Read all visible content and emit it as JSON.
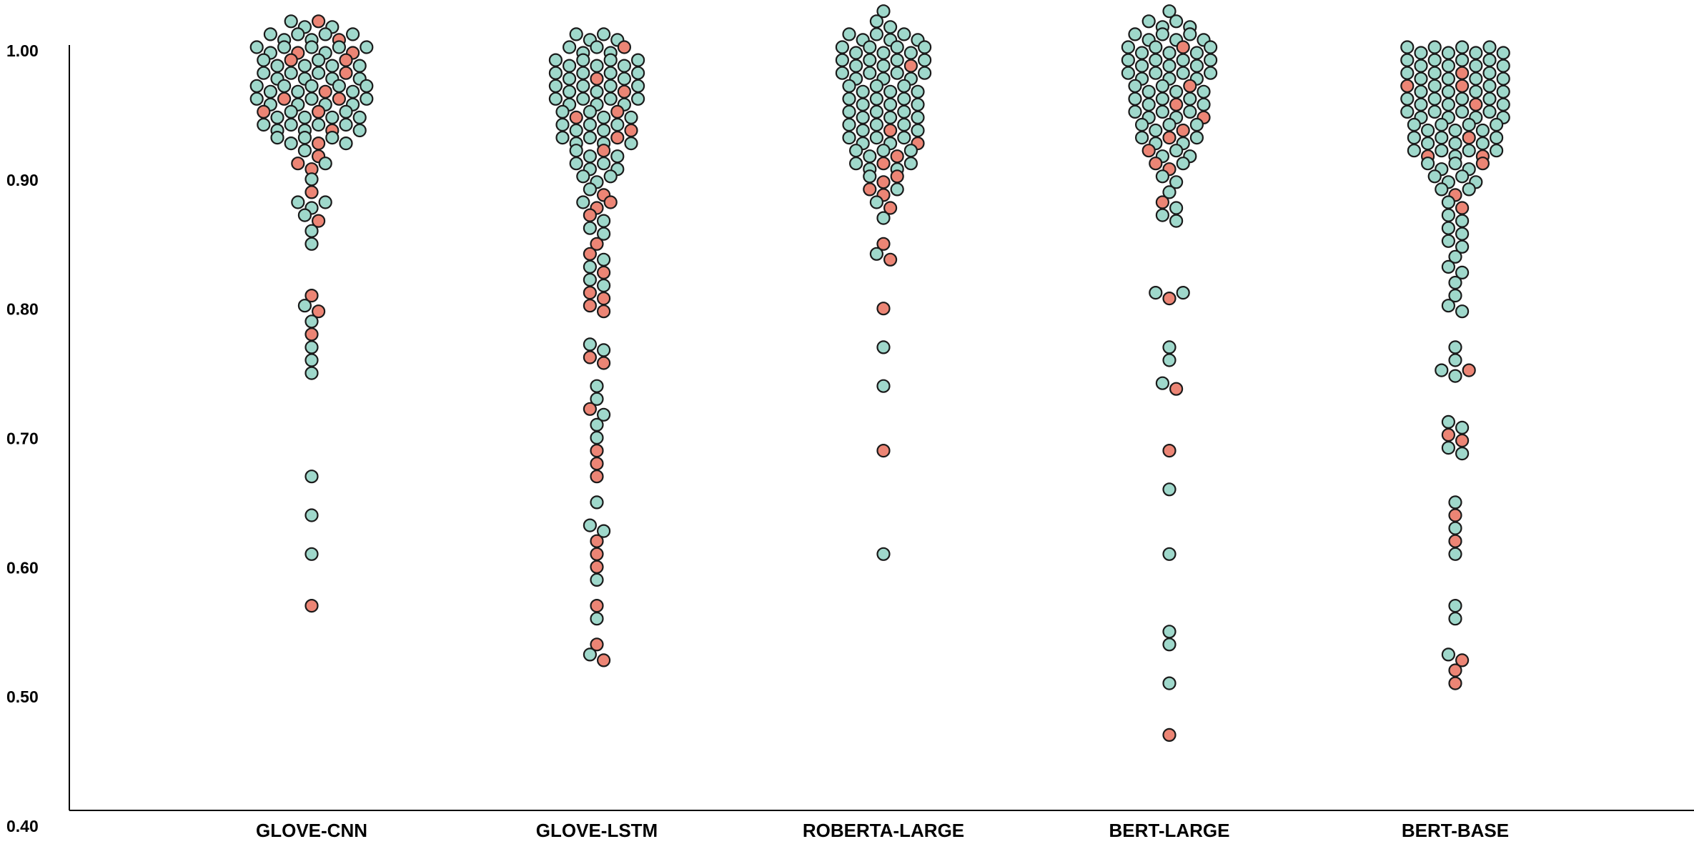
{
  "chart_data": {
    "type": "scatter",
    "style": "beeswarm",
    "ylim": [
      0.4,
      1.0
    ],
    "yticks": [
      "1.00",
      "0.90",
      "0.80",
      "0.70",
      "0.60",
      "0.50",
      "0.40"
    ],
    "categories": [
      "GLOVE-CNN",
      "GLOVE-LSTM",
      "ROBERTA-LARGE",
      "BERT-LARGE",
      "BERT-BASE"
    ],
    "colors": {
      "point": "#9fd8cb",
      "highlight": "#ec8575",
      "stroke": "#1a1a1a",
      "axis": "#000000"
    },
    "grid": false,
    "legend": "none",
    "series": [
      {
        "category": "GLOVE-CNN",
        "values": [
          1.02,
          1.02,
          1.02,
          1.02,
          1.01,
          1.01,
          1.01,
          1.01,
          1.01,
          1.01,
          1.01,
          1.0,
          1.0,
          1.0,
          1.0,
          1.0,
          1.0,
          1.0,
          1.0,
          1.0,
          0.99,
          0.99,
          0.99,
          0.99,
          0.99,
          0.99,
          0.99,
          0.99,
          0.98,
          0.98,
          0.98,
          0.98,
          0.98,
          0.98,
          0.98,
          0.98,
          0.97,
          0.97,
          0.97,
          0.97,
          0.97,
          0.97,
          0.97,
          0.97,
          0.97,
          0.96,
          0.96,
          0.96,
          0.96,
          0.96,
          0.96,
          0.96,
          0.96,
          0.96,
          0.95,
          0.95,
          0.95,
          0.95,
          0.95,
          0.95,
          0.95,
          0.95,
          0.94,
          0.94,
          0.94,
          0.94,
          0.94,
          0.94,
          0.94,
          0.94,
          0.93,
          0.93,
          0.93,
          0.93,
          0.93,
          0.93,
          0.92,
          0.92,
          0.91,
          0.91,
          0.91,
          0.9,
          0.89,
          0.88,
          0.88,
          0.88,
          0.87,
          0.87,
          0.86,
          0.85,
          0.81,
          0.8,
          0.8,
          0.79,
          0.78,
          0.77,
          0.76,
          0.75,
          0.67,
          0.64,
          0.61,
          0.57
        ],
        "highlighted": [
          1.02,
          1.01,
          1.0,
          1.0,
          0.99,
          0.99,
          0.98,
          0.97,
          0.96,
          0.96,
          0.95,
          0.95,
          0.94,
          0.93,
          0.92,
          0.91,
          0.91,
          0.89,
          0.87,
          0.81,
          0.8,
          0.78,
          0.57
        ]
      },
      {
        "category": "GLOVE-LSTM",
        "values": [
          1.01,
          1.01,
          1.01,
          1.01,
          1.0,
          1.0,
          1.0,
          1.0,
          1.0,
          0.99,
          0.99,
          0.99,
          0.99,
          0.99,
          0.99,
          0.99,
          0.98,
          0.98,
          0.98,
          0.98,
          0.98,
          0.98,
          0.98,
          0.97,
          0.97,
          0.97,
          0.97,
          0.97,
          0.97,
          0.97,
          0.96,
          0.96,
          0.96,
          0.96,
          0.96,
          0.96,
          0.96,
          0.95,
          0.95,
          0.95,
          0.95,
          0.95,
          0.95,
          0.94,
          0.94,
          0.94,
          0.94,
          0.94,
          0.94,
          0.93,
          0.93,
          0.93,
          0.93,
          0.93,
          0.93,
          0.92,
          0.92,
          0.92,
          0.92,
          0.91,
          0.91,
          0.91,
          0.91,
          0.9,
          0.9,
          0.9,
          0.89,
          0.89,
          0.88,
          0.88,
          0.88,
          0.87,
          0.87,
          0.86,
          0.86,
          0.85,
          0.84,
          0.84,
          0.83,
          0.83,
          0.82,
          0.82,
          0.81,
          0.81,
          0.8,
          0.8,
          0.77,
          0.77,
          0.76,
          0.76,
          0.74,
          0.73,
          0.72,
          0.72,
          0.71,
          0.7,
          0.69,
          0.68,
          0.67,
          0.65,
          0.63,
          0.63,
          0.62,
          0.61,
          0.6,
          0.59,
          0.57,
          0.56,
          0.54,
          0.53,
          0.53
        ],
        "highlighted": [
          1.0,
          0.98,
          0.97,
          0.95,
          0.95,
          0.94,
          0.93,
          0.92,
          0.89,
          0.88,
          0.88,
          0.87,
          0.85,
          0.84,
          0.83,
          0.81,
          0.81,
          0.8,
          0.8,
          0.76,
          0.76,
          0.72,
          0.69,
          0.68,
          0.67,
          0.62,
          0.61,
          0.6,
          0.57,
          0.54,
          0.53
        ]
      },
      {
        "category": "ROBERTA-LARGE",
        "values": [
          1.03,
          1.02,
          1.02,
          1.01,
          1.01,
          1.01,
          1.01,
          1.01,
          1.01,
          1.0,
          1.0,
          1.0,
          1.0,
          1.0,
          1.0,
          1.0,
          0.99,
          0.99,
          0.99,
          0.99,
          0.99,
          0.99,
          0.99,
          0.98,
          0.98,
          0.98,
          0.98,
          0.98,
          0.98,
          0.98,
          0.97,
          0.97,
          0.97,
          0.97,
          0.97,
          0.97,
          0.96,
          0.96,
          0.96,
          0.96,
          0.96,
          0.96,
          0.95,
          0.95,
          0.95,
          0.95,
          0.95,
          0.95,
          0.94,
          0.94,
          0.94,
          0.94,
          0.94,
          0.94,
          0.93,
          0.93,
          0.93,
          0.93,
          0.93,
          0.93,
          0.92,
          0.92,
          0.92,
          0.92,
          0.92,
          0.91,
          0.91,
          0.91,
          0.91,
          0.91,
          0.9,
          0.9,
          0.9,
          0.89,
          0.89,
          0.89,
          0.88,
          0.88,
          0.87,
          0.85,
          0.84,
          0.84,
          0.8,
          0.77,
          0.74,
          0.69,
          0.61
        ],
        "highlighted": [
          0.99,
          0.94,
          0.93,
          0.92,
          0.91,
          0.9,
          0.9,
          0.89,
          0.89,
          0.88,
          0.85,
          0.84,
          0.8,
          0.69
        ]
      },
      {
        "category": "BERT-LARGE",
        "values": [
          1.03,
          1.02,
          1.02,
          1.02,
          1.02,
          1.01,
          1.01,
          1.01,
          1.01,
          1.01,
          1.01,
          1.0,
          1.0,
          1.0,
          1.0,
          1.0,
          1.0,
          1.0,
          0.99,
          0.99,
          0.99,
          0.99,
          0.99,
          0.99,
          0.99,
          0.98,
          0.98,
          0.98,
          0.98,
          0.98,
          0.98,
          0.98,
          0.97,
          0.97,
          0.97,
          0.97,
          0.97,
          0.97,
          0.96,
          0.96,
          0.96,
          0.96,
          0.96,
          0.96,
          0.95,
          0.95,
          0.95,
          0.95,
          0.95,
          0.95,
          0.94,
          0.94,
          0.94,
          0.94,
          0.94,
          0.93,
          0.93,
          0.93,
          0.93,
          0.93,
          0.92,
          0.92,
          0.92,
          0.92,
          0.91,
          0.91,
          0.91,
          0.9,
          0.9,
          0.89,
          0.88,
          0.88,
          0.87,
          0.87,
          0.81,
          0.81,
          0.81,
          0.77,
          0.76,
          0.74,
          0.74,
          0.69,
          0.66,
          0.61,
          0.55,
          0.54,
          0.51,
          0.47
        ],
        "highlighted": [
          1.0,
          0.97,
          0.96,
          0.95,
          0.94,
          0.93,
          0.92,
          0.91,
          0.91,
          0.88,
          0.81,
          0.74,
          0.69,
          0.47
        ]
      },
      {
        "category": "BERT-BASE",
        "values": [
          1.0,
          1.0,
          1.0,
          1.0,
          1.0,
          1.0,
          1.0,
          1.0,
          0.99,
          0.99,
          0.99,
          0.99,
          0.99,
          0.99,
          0.99,
          0.99,
          0.98,
          0.98,
          0.98,
          0.98,
          0.98,
          0.98,
          0.98,
          0.98,
          0.97,
          0.97,
          0.97,
          0.97,
          0.97,
          0.97,
          0.97,
          0.97,
          0.96,
          0.96,
          0.96,
          0.96,
          0.96,
          0.96,
          0.96,
          0.96,
          0.95,
          0.95,
          0.95,
          0.95,
          0.95,
          0.95,
          0.95,
          0.95,
          0.94,
          0.94,
          0.94,
          0.94,
          0.94,
          0.94,
          0.94,
          0.93,
          0.93,
          0.93,
          0.93,
          0.93,
          0.93,
          0.93,
          0.92,
          0.92,
          0.92,
          0.92,
          0.92,
          0.92,
          0.92,
          0.91,
          0.91,
          0.91,
          0.91,
          0.91,
          0.9,
          0.9,
          0.9,
          0.9,
          0.89,
          0.89,
          0.89,
          0.88,
          0.88,
          0.87,
          0.87,
          0.86,
          0.86,
          0.85,
          0.85,
          0.84,
          0.83,
          0.83,
          0.82,
          0.81,
          0.8,
          0.8,
          0.77,
          0.76,
          0.75,
          0.75,
          0.75,
          0.71,
          0.71,
          0.7,
          0.7,
          0.69,
          0.69,
          0.65,
          0.64,
          0.63,
          0.62,
          0.61,
          0.57,
          0.56,
          0.53,
          0.53,
          0.52,
          0.51
        ],
        "highlighted": [
          0.98,
          0.97,
          0.97,
          0.96,
          0.93,
          0.92,
          0.92,
          0.91,
          0.89,
          0.88,
          0.75,
          0.7,
          0.7,
          0.64,
          0.62,
          0.53,
          0.52,
          0.51
        ]
      }
    ]
  }
}
